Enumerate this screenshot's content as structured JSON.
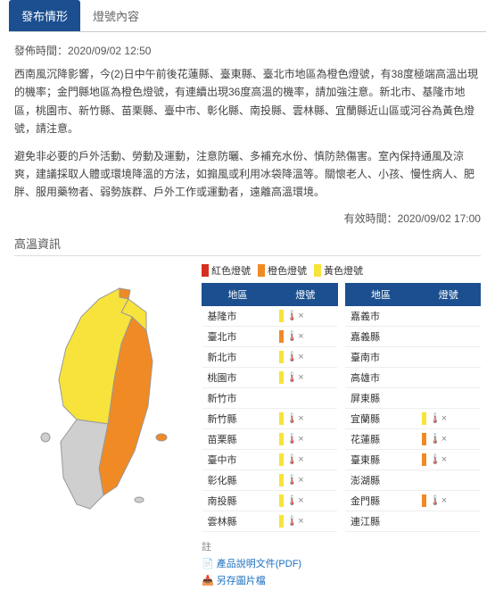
{
  "tabs": {
    "active": "發布情形",
    "inactive": "燈號內容"
  },
  "publishLabel": "發佈時間：2020/09/02 12:50",
  "para1": "西南風沉降影響，今(2)日中午前後花蓮縣、臺東縣、臺北市地區為橙色燈號，有38度極端高溫出現的機率；金門縣地區為橙色燈號，有連續出現36度高溫的機率，請加強注意。新北市、基隆市地區，桃園市、新竹縣、苗栗縣、臺中市、彰化縣、南投縣、雲林縣、宜蘭縣近山區或河谷為黃色燈號，請注意。",
  "para2": "避免非必要的戶外活動、勞動及運動，注意防曬、多補充水份、慎防熱傷害。室內保持通風及涼爽，建議採取人體或環境降溫的方法，如搧風或利用冰袋降溫等。關懷老人、小孩、慢性病人、肥胖、服用藥物者、弱勢族群、戶外工作或運動者，遠離高溫環境。",
  "validLabel": "有效時間：2020/09/02 17:00",
  "sectionTitle": "高溫資訊",
  "legend": {
    "red": {
      "label": "紅色燈號",
      "color": "#d72f1f"
    },
    "orange": {
      "label": "橙色燈號",
      "color": "#f08a24"
    },
    "yellow": {
      "label": "黃色燈號",
      "color": "#f7e33b"
    }
  },
  "tableHeaders": {
    "region": "地區",
    "signal": "燈號"
  },
  "colors": {
    "yellow": "#f7e33b",
    "orange": "#f08a24",
    "gray": "#cfcfcf",
    "border": "#999999"
  },
  "leftRegions": [
    {
      "name": "基隆市",
      "color": "#f7e33b",
      "therm": "🌡️×"
    },
    {
      "name": "臺北市",
      "color": "#f08a24",
      "therm": "🌡️×"
    },
    {
      "name": "新北市",
      "color": "#f7e33b",
      "therm": "🌡️×"
    },
    {
      "name": "桃園市",
      "color": "#f7e33b",
      "therm": "🌡️×"
    },
    {
      "name": "新竹市",
      "color": "",
      "therm": ""
    },
    {
      "name": "新竹縣",
      "color": "#f7e33b",
      "therm": "🌡️×"
    },
    {
      "name": "苗栗縣",
      "color": "#f7e33b",
      "therm": "🌡️×"
    },
    {
      "name": "臺中市",
      "color": "#f7e33b",
      "therm": "🌡️×"
    },
    {
      "name": "彰化縣",
      "color": "#f7e33b",
      "therm": "🌡️×"
    },
    {
      "name": "南投縣",
      "color": "#f7e33b",
      "therm": "🌡️×"
    },
    {
      "name": "雲林縣",
      "color": "#f7e33b",
      "therm": "🌡️×"
    }
  ],
  "rightRegions": [
    {
      "name": "嘉義市",
      "color": "",
      "therm": ""
    },
    {
      "name": "嘉義縣",
      "color": "",
      "therm": ""
    },
    {
      "name": "臺南市",
      "color": "",
      "therm": ""
    },
    {
      "name": "高雄市",
      "color": "",
      "therm": ""
    },
    {
      "name": "屏東縣",
      "color": "",
      "therm": ""
    },
    {
      "name": "宜蘭縣",
      "color": "#f7e33b",
      "therm": "🌡️×"
    },
    {
      "name": "花蓮縣",
      "color": "#f08a24",
      "therm": "🌡️×"
    },
    {
      "name": "臺東縣",
      "color": "#f08a24",
      "therm": "🌡️×"
    },
    {
      "name": "澎湖縣",
      "color": "",
      "therm": ""
    },
    {
      "name": "金門縣",
      "color": "#f08a24",
      "therm": "🌡️×"
    },
    {
      "name": "連江縣",
      "color": "",
      "therm": ""
    }
  ],
  "footer": {
    "noteLabel": "註",
    "pdf": "📄 產品說明文件(PDF)",
    "img": "📥 另存圖片檔"
  },
  "map": {
    "north": "#f7e33b",
    "taipei": "#f08a24",
    "central": "#f7e33b",
    "southwest": "#cfcfcf",
    "east": "#f08a24",
    "yilan": "#f7e33b",
    "islands": "#cfcfcf"
  }
}
